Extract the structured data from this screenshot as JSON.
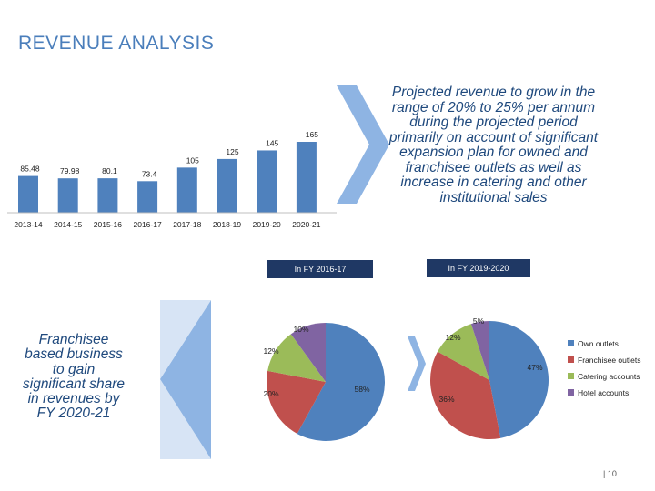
{
  "slide": {
    "title": "REVENUE ANALYSIS",
    "projection_text": "Projected revenue to grow in the range of 20% to 25% per annum during the projected period primarily on account of significant expansion plan for owned and franchisee outlets as well as increase in catering and other institutional sales",
    "franchise_text": "Franchisee based business to gain significant share in revenues by FY 2020-21",
    "fy1_label": "In FY 2016-17",
    "fy2_label": "In FY 2019-2020",
    "page_number": "| 10"
  },
  "colors": {
    "bar": "#4f81bd",
    "own": "#4f81bd",
    "franchisee": "#c0504d",
    "catering": "#9bbb59",
    "hotel": "#8064a2",
    "arrow": "#8eb4e3",
    "arrow_light": "#c6d9f1"
  },
  "chart_data": [
    {
      "type": "bar",
      "title": "",
      "categories": [
        "2013-14",
        "2014-15",
        "2015-16",
        "2016-17",
        "2017-18",
        "2018-19",
        "2019-20",
        "2020-21"
      ],
      "values": [
        85.48,
        79.98,
        80.1,
        73.4,
        105,
        125,
        145,
        165
      ],
      "ylim": [
        0,
        165
      ]
    },
    {
      "type": "pie",
      "title": "In FY 2016-17",
      "labels": [
        "Own outlets",
        "Franchisee outlets",
        "Catering accounts",
        "Hotel accounts"
      ],
      "values": [
        58,
        20,
        12,
        10
      ],
      "value_labels": [
        "58%",
        "20%",
        "12%",
        "10%"
      ]
    },
    {
      "type": "pie",
      "title": "In FY 2019-2020",
      "labels": [
        "Own outlets",
        "Franchisee outlets",
        "Catering accounts",
        "Hotel accounts"
      ],
      "values": [
        47,
        36,
        12,
        5
      ],
      "value_labels": [
        "47%",
        "36%",
        "12%",
        "5%"
      ]
    }
  ],
  "legend": {
    "items": [
      "Own outlets",
      "Franchisee outlets",
      "Catering accounts",
      "Hotel accounts"
    ]
  }
}
